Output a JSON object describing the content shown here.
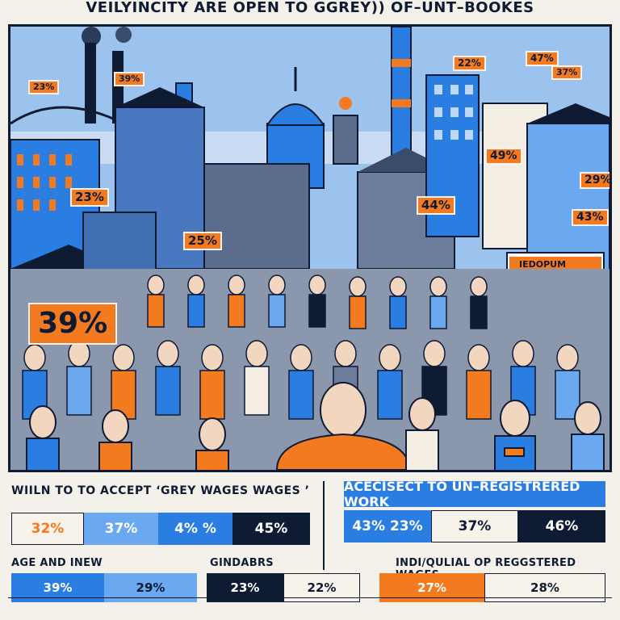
{
  "title": "VEILYINCITY ARE OPEN TO GGREY)) OF–UNT–BOOKES",
  "colors": {
    "navy": "#0f1a33",
    "blue": "#2a7de1",
    "light_blue": "#6aa8ef",
    "orange": "#f47a1f",
    "cream": "#f8f3ea",
    "sky": "#9cc3ee"
  },
  "scene_tags": [
    {
      "id": "tag-1",
      "label": "23%"
    },
    {
      "id": "tag-2",
      "label": "39%"
    },
    {
      "id": "tag-3",
      "label": "22%"
    },
    {
      "id": "tag-4",
      "label": "47%"
    },
    {
      "id": "tag-5",
      "label": "37%"
    },
    {
      "id": "tag-6",
      "label": "49%"
    },
    {
      "id": "tag-7",
      "label": "23%"
    },
    {
      "id": "tag-8",
      "label": "44%"
    },
    {
      "id": "tag-9",
      "label": "29%"
    },
    {
      "id": "tag-10",
      "label": "43%"
    },
    {
      "id": "tag-11",
      "label": "25%"
    },
    {
      "id": "tag-12",
      "label": "39%"
    }
  ],
  "shop_sign": "IEDOPUM",
  "left_panel": {
    "title": "WIILN TO TO ACCEPT ‘GREY WAGES WAGES ’",
    "bar": [
      "32%",
      "37%",
      "4% %",
      "45%"
    ],
    "age_caption": "AGE  AND INEW",
    "gender_caption": "GINDABRS",
    "age_bar": [
      "39%",
      "29%"
    ],
    "gender_bar": [
      "23%",
      "22%"
    ]
  },
  "right_panel": {
    "title": "ACECISECT TO UN–REGISTRERED WORK",
    "bar": [
      "43% 23%",
      "37%",
      "46%"
    ],
    "caption": "INDI/QULIAL OP REGGSTERED WAGES",
    "bar2": [
      "27%",
      "28%"
    ]
  }
}
